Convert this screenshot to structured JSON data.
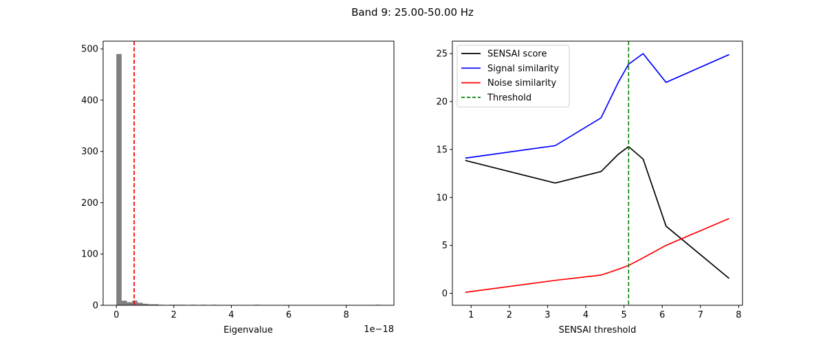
{
  "figure": {
    "title": "Band 9: 25.00-50.00 Hz"
  },
  "chart_data": [
    {
      "type": "histogram",
      "title": "",
      "xlabel": "Eigenvalue",
      "ylabel": "",
      "x_offset_text": "1e−18",
      "xlim": [
        -0.46,
        9.66
      ],
      "ylim": [
        0,
        515
      ],
      "xticks": [
        0,
        2,
        4,
        6,
        8
      ],
      "yticks": [
        0,
        100,
        200,
        300,
        400,
        500
      ],
      "bar_color": "#808080",
      "bin_width": 0.184,
      "bins": [
        {
          "x": 0.0,
          "count": 490
        },
        {
          "x": 0.184,
          "count": 9
        },
        {
          "x": 0.368,
          "count": 6
        },
        {
          "x": 0.552,
          "count": 9
        },
        {
          "x": 0.736,
          "count": 5
        },
        {
          "x": 0.92,
          "count": 3
        },
        {
          "x": 1.104,
          "count": 2
        },
        {
          "x": 1.288,
          "count": 2
        },
        {
          "x": 1.472,
          "count": 1
        },
        {
          "x": 1.84,
          "count": 1
        },
        {
          "x": 2.024,
          "count": 1
        },
        {
          "x": 2.208,
          "count": 1
        },
        {
          "x": 2.576,
          "count": 1
        },
        {
          "x": 2.944,
          "count": 1
        },
        {
          "x": 3.312,
          "count": 1
        },
        {
          "x": 4.784,
          "count": 1
        },
        {
          "x": 9.016,
          "count": 1
        }
      ],
      "vline": {
        "x": 0.62,
        "color": "#ff0000",
        "style": "dashed"
      }
    },
    {
      "type": "line",
      "title": "",
      "xlabel": "SENSAI threshold",
      "ylabel": "",
      "xlim": [
        0.51,
        8.1
      ],
      "ylim": [
        -1.25,
        26.3
      ],
      "xticks": [
        1,
        2,
        3,
        4,
        5,
        6,
        7,
        8
      ],
      "yticks": [
        0,
        5,
        10,
        15,
        20,
        25
      ],
      "legend_position": "top-left",
      "series": [
        {
          "name": "SENSAI score",
          "color": "#000000",
          "points": [
            [
              0.85,
              13.85
            ],
            [
              3.2,
              11.5
            ],
            [
              4.4,
              12.7
            ],
            [
              4.85,
              14.5
            ],
            [
              5.12,
              15.3
            ],
            [
              5.5,
              14.0
            ],
            [
              6.1,
              7.0
            ],
            [
              7.75,
              1.55
            ]
          ]
        },
        {
          "name": "Signal similarity",
          "color": "#0000ff",
          "points": [
            [
              0.85,
              14.1
            ],
            [
              3.2,
              15.4
            ],
            [
              4.4,
              18.3
            ],
            [
              4.85,
              22.0
            ],
            [
              5.12,
              23.9
            ],
            [
              5.5,
              25.0
            ],
            [
              6.1,
              22.0
            ],
            [
              7.75,
              24.9
            ]
          ]
        },
        {
          "name": "Noise similarity",
          "color": "#ff0000",
          "points": [
            [
              0.85,
              0.1
            ],
            [
              3.2,
              1.35
            ],
            [
              4.4,
              1.9
            ],
            [
              4.85,
              2.5
            ],
            [
              5.12,
              2.9
            ],
            [
              5.5,
              3.7
            ],
            [
              6.1,
              5.0
            ],
            [
              7.75,
              7.8
            ]
          ]
        }
      ],
      "threshold": {
        "name": "Threshold",
        "x": 5.12,
        "color": "#008000",
        "style": "dashed"
      }
    }
  ]
}
